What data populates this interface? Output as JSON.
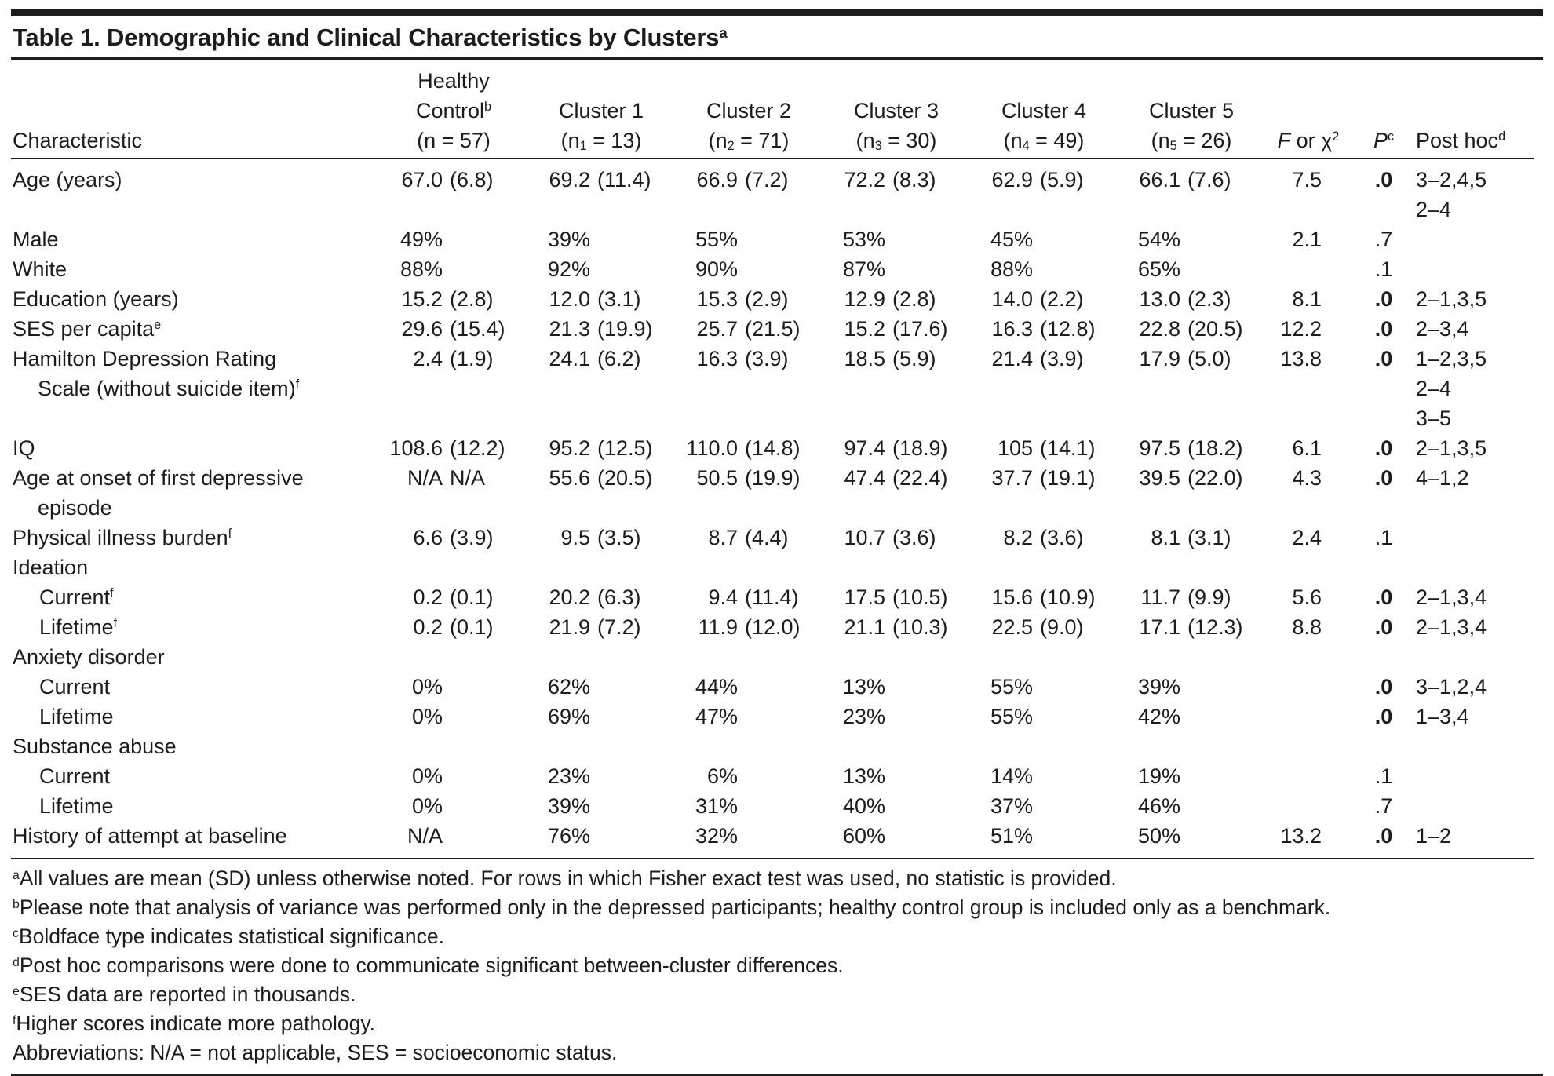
{
  "title": {
    "text": "Table 1. Demographic and Clinical Characteristics by Clusters",
    "sup": "a"
  },
  "colors": {
    "text": "#1c1c1c",
    "rule": "#1d1d1d"
  },
  "table": {
    "header": {
      "characteristic": "Characteristic",
      "groups": [
        {
          "lines": [
            {
              "t": "Healthy"
            },
            {
              "t": "Control",
              "sup": "b"
            },
            {
              "npre": "(n",
              "nsub": "",
              "nrest": " = 57)"
            }
          ]
        },
        {
          "lines": [
            {
              "t": "Cluster 1"
            },
            {
              "npre": "(n",
              "nsub": "1",
              "nrest": " = 13)"
            }
          ]
        },
        {
          "lines": [
            {
              "t": "Cluster 2"
            },
            {
              "npre": "(n",
              "nsub": "2",
              "nrest": " = 71)"
            }
          ]
        },
        {
          "lines": [
            {
              "t": "Cluster 3"
            },
            {
              "npre": "(n",
              "nsub": "3",
              "nrest": " = 30)"
            }
          ]
        },
        {
          "lines": [
            {
              "t": "Cluster 4"
            },
            {
              "npre": "(n",
              "nsub": "4",
              "nrest": " = 49)"
            }
          ]
        },
        {
          "lines": [
            {
              "t": "Cluster 5"
            },
            {
              "npre": "(n",
              "nsub": "5",
              "nrest": " = 26)"
            }
          ]
        }
      ],
      "f": {
        "italic": "F",
        "rest": " or χ",
        "sup": "2"
      },
      "p": {
        "italic": "P",
        "sup": "c"
      },
      "posthoc": {
        "text": "Post hoc",
        "sup": "d"
      }
    },
    "rows": [
      {
        "label": "Age (years)",
        "sup": "",
        "label2": "",
        "sup2": "",
        "indent": false,
        "section": false,
        "cells": [
          [
            "67.0",
            "(6.8)"
          ],
          [
            "69.2",
            "(11.4)"
          ],
          [
            "66.9",
            "(7.2)"
          ],
          [
            "72.2",
            "(8.3)"
          ],
          [
            "62.9",
            "(5.9)"
          ],
          [
            "66.1",
            "(7.6)"
          ]
        ],
        "f": "7.5",
        "p": ".0",
        "p_bold": true,
        "posthoc": [
          "3–2,4,5",
          "2–4"
        ]
      },
      {
        "label": "Male",
        "sup": "",
        "label2": "",
        "sup2": "",
        "indent": false,
        "section": false,
        "cells": [
          [
            "49%",
            ""
          ],
          [
            "39%",
            ""
          ],
          [
            "55%",
            ""
          ],
          [
            "53%",
            ""
          ],
          [
            "45%",
            ""
          ],
          [
            "54%",
            ""
          ]
        ],
        "f": "2.1",
        "p": ".7",
        "p_bold": false,
        "posthoc": []
      },
      {
        "label": "White",
        "sup": "",
        "label2": "",
        "sup2": "",
        "indent": false,
        "section": false,
        "cells": [
          [
            "88%",
            ""
          ],
          [
            "92%",
            ""
          ],
          [
            "90%",
            ""
          ],
          [
            "87%",
            ""
          ],
          [
            "88%",
            ""
          ],
          [
            "65%",
            ""
          ]
        ],
        "f": "",
        "p": ".1",
        "p_bold": false,
        "posthoc": []
      },
      {
        "label": "Education (years)",
        "sup": "",
        "label2": "",
        "sup2": "",
        "indent": false,
        "section": false,
        "cells": [
          [
            "15.2",
            "(2.8)"
          ],
          [
            "12.0",
            "(3.1)"
          ],
          [
            "15.3",
            "(2.9)"
          ],
          [
            "12.9",
            "(2.8)"
          ],
          [
            "14.0",
            "(2.2)"
          ],
          [
            "13.0",
            "(2.3)"
          ]
        ],
        "f": "8.1",
        "p": ".0",
        "p_bold": true,
        "posthoc": [
          "2–1,3,5"
        ]
      },
      {
        "label": "SES per capita",
        "sup": "e",
        "label2": "",
        "sup2": "",
        "indent": false,
        "section": false,
        "cells": [
          [
            "29.6",
            "(15.4)"
          ],
          [
            "21.3",
            "(19.9)"
          ],
          [
            "25.7",
            "(21.5)"
          ],
          [
            "15.2",
            "(17.6)"
          ],
          [
            "16.3",
            "(12.8)"
          ],
          [
            "22.8",
            "(20.5)"
          ]
        ],
        "f": "12.2",
        "p": ".0",
        "p_bold": true,
        "posthoc": [
          "2–3,4"
        ]
      },
      {
        "label": "Hamilton Depression Rating",
        "sup": "",
        "label2": "Scale (without suicide item)",
        "sup2": "f",
        "indent": false,
        "section": false,
        "cells": [
          [
            "2.4",
            "(1.9)"
          ],
          [
            "24.1",
            "(6.2)"
          ],
          [
            "16.3",
            "(3.9)"
          ],
          [
            "18.5",
            "(5.9)"
          ],
          [
            "21.4",
            "(3.9)"
          ],
          [
            "17.9",
            "(5.0)"
          ]
        ],
        "f": "13.8",
        "p": ".0",
        "p_bold": true,
        "posthoc": [
          "1–2,3,5",
          "2–4",
          "3–5"
        ]
      },
      {
        "label": "IQ",
        "sup": "",
        "label2": "",
        "sup2": "",
        "indent": false,
        "section": false,
        "cells": [
          [
            "108.6",
            "(12.2)"
          ],
          [
            "95.2",
            "(12.5)"
          ],
          [
            "110.0",
            "(14.8)"
          ],
          [
            "97.4",
            "(18.9)"
          ],
          [
            "105",
            "(14.1)"
          ],
          [
            "97.5",
            "(18.2)"
          ]
        ],
        "f": "6.1",
        "p": ".0",
        "p_bold": true,
        "posthoc": [
          "2–1,3,5"
        ]
      },
      {
        "label": "Age at onset of first depressive",
        "sup": "",
        "label2": "episode",
        "sup2": "",
        "indent": false,
        "section": false,
        "cells": [
          [
            "N/A",
            "N/A"
          ],
          [
            "55.6",
            "(20.5)"
          ],
          [
            "50.5",
            "(19.9)"
          ],
          [
            "47.4",
            "(22.4)"
          ],
          [
            "37.7",
            "(19.1)"
          ],
          [
            "39.5",
            "(22.0)"
          ]
        ],
        "f": "4.3",
        "p": ".0",
        "p_bold": true,
        "posthoc": [
          "4–1,2"
        ]
      },
      {
        "label": "Physical illness burden",
        "sup": "f",
        "label2": "",
        "sup2": "",
        "indent": false,
        "section": false,
        "cells": [
          [
            "6.6",
            "(3.9)"
          ],
          [
            "9.5",
            "(3.5)"
          ],
          [
            "8.7",
            "(4.4)"
          ],
          [
            "10.7",
            "(3.6)"
          ],
          [
            "8.2",
            "(3.6)"
          ],
          [
            "8.1",
            "(3.1)"
          ]
        ],
        "f": "2.4",
        "p": ".1",
        "p_bold": false,
        "posthoc": []
      },
      {
        "label": "Ideation",
        "sup": "",
        "label2": "",
        "sup2": "",
        "indent": false,
        "section": true,
        "cells": [],
        "f": "",
        "p": "",
        "p_bold": false,
        "posthoc": []
      },
      {
        "label": "Current",
        "sup": "f",
        "label2": "",
        "sup2": "",
        "indent": true,
        "section": false,
        "cells": [
          [
            "0.2",
            "(0.1)"
          ],
          [
            "20.2",
            "(6.3)"
          ],
          [
            "9.4",
            "(11.4)"
          ],
          [
            "17.5",
            "(10.5)"
          ],
          [
            "15.6",
            "(10.9)"
          ],
          [
            "11.7",
            "(9.9)"
          ]
        ],
        "f": "5.6",
        "p": ".0",
        "p_bold": true,
        "posthoc": [
          "2–1,3,4"
        ]
      },
      {
        "label": "Lifetime",
        "sup": "f",
        "label2": "",
        "sup2": "",
        "indent": true,
        "section": false,
        "cells": [
          [
            "0.2",
            "(0.1)"
          ],
          [
            "21.9",
            "(7.2)"
          ],
          [
            "11.9",
            "(12.0)"
          ],
          [
            "21.1",
            "(10.3)"
          ],
          [
            "22.5",
            "(9.0)"
          ],
          [
            "17.1",
            "(12.3)"
          ]
        ],
        "f": "8.8",
        "p": ".0",
        "p_bold": true,
        "posthoc": [
          "2–1,3,4"
        ]
      },
      {
        "label": "Anxiety disorder",
        "sup": "",
        "label2": "",
        "sup2": "",
        "indent": false,
        "section": true,
        "cells": [],
        "f": "",
        "p": "",
        "p_bold": false,
        "posthoc": []
      },
      {
        "label": "Current",
        "sup": "",
        "label2": "",
        "sup2": "",
        "indent": true,
        "section": false,
        "cells": [
          [
            "0%",
            ""
          ],
          [
            "62%",
            ""
          ],
          [
            "44%",
            ""
          ],
          [
            "13%",
            ""
          ],
          [
            "55%",
            ""
          ],
          [
            "39%",
            ""
          ]
        ],
        "f": "",
        "p": ".0",
        "p_bold": true,
        "posthoc": [
          "3–1,2,4"
        ]
      },
      {
        "label": "Lifetime",
        "sup": "",
        "label2": "",
        "sup2": "",
        "indent": true,
        "section": false,
        "cells": [
          [
            "0%",
            ""
          ],
          [
            "69%",
            ""
          ],
          [
            "47%",
            ""
          ],
          [
            "23%",
            ""
          ],
          [
            "55%",
            ""
          ],
          [
            "42%",
            ""
          ]
        ],
        "f": "",
        "p": ".0",
        "p_bold": true,
        "posthoc": [
          "1–3,4"
        ]
      },
      {
        "label": "Substance abuse",
        "sup": "",
        "label2": "",
        "sup2": "",
        "indent": false,
        "section": true,
        "cells": [],
        "f": "",
        "p": "",
        "p_bold": false,
        "posthoc": []
      },
      {
        "label": "Current",
        "sup": "",
        "label2": "",
        "sup2": "",
        "indent": true,
        "section": false,
        "cells": [
          [
            "0%",
            ""
          ],
          [
            "23%",
            ""
          ],
          [
            "6%",
            ""
          ],
          [
            "13%",
            ""
          ],
          [
            "14%",
            ""
          ],
          [
            "19%",
            ""
          ]
        ],
        "f": "",
        "p": ".1",
        "p_bold": false,
        "posthoc": []
      },
      {
        "label": "Lifetime",
        "sup": "",
        "label2": "",
        "sup2": "",
        "indent": true,
        "section": false,
        "cells": [
          [
            "0%",
            ""
          ],
          [
            "39%",
            ""
          ],
          [
            "31%",
            ""
          ],
          [
            "40%",
            ""
          ],
          [
            "37%",
            ""
          ],
          [
            "46%",
            ""
          ]
        ],
        "f": "",
        "p": ".7",
        "p_bold": false,
        "posthoc": []
      },
      {
        "label": "History of attempt at baseline",
        "sup": "",
        "label2": "",
        "sup2": "",
        "indent": false,
        "section": false,
        "cells": [
          [
            "N/A",
            ""
          ],
          [
            "76%",
            ""
          ],
          [
            "32%",
            ""
          ],
          [
            "60%",
            ""
          ],
          [
            "51%",
            ""
          ],
          [
            "50%",
            ""
          ]
        ],
        "f": "13.2",
        "p": ".0",
        "p_bold": true,
        "posthoc": [
          "1–2"
        ]
      }
    ]
  },
  "footnotes": [
    {
      "sup": "a",
      "text": "All values are mean (SD) unless otherwise noted. For rows in which Fisher exact test was used, no statistic is provided."
    },
    {
      "sup": "b",
      "text": "Please note that analysis of variance was performed only in the depressed participants; healthy control group is included only as a benchmark."
    },
    {
      "sup": "c",
      "text": "Boldface type indicates statistical significance."
    },
    {
      "sup": "d",
      "text": "Post hoc comparisons were done to communicate significant between-cluster differences."
    },
    {
      "sup": "e",
      "text": "SES data are reported in thousands."
    },
    {
      "sup": "f",
      "text": "Higher scores indicate more pathology."
    },
    {
      "sup": "",
      "text": "Abbreviations: N/A = not applicable, SES = socioeconomic status."
    }
  ]
}
